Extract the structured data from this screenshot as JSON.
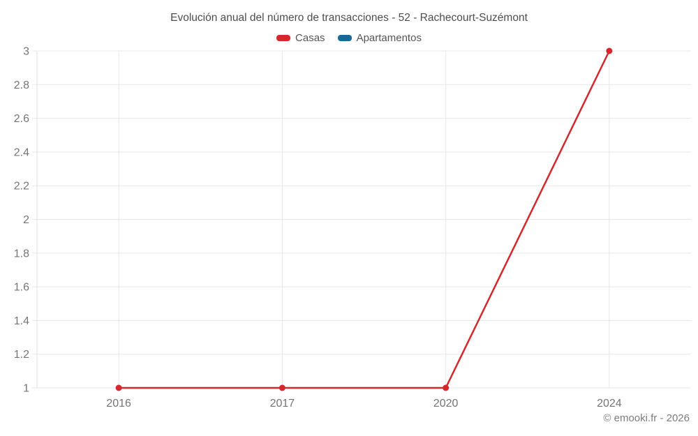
{
  "header": {
    "title": "Evolución anual del número de transacciones - 52 - Rachecourt-Suzémont"
  },
  "legend": [
    {
      "label": "Casas",
      "color": "#d4282d"
    },
    {
      "label": "Apartamentos",
      "color": "#15699b"
    }
  ],
  "footer": {
    "copyright": "© emooki.fr - 2026"
  },
  "colors": {
    "gridline": "#e7e7e7",
    "axis_line": "#e0e0e0",
    "tick_label": "#757575",
    "title_text": "#4d4d4d"
  },
  "chart_data": {
    "type": "line",
    "title": "Evolución anual del número de transacciones - 52 - Rachecourt-Suzémont",
    "categories": [
      "2016",
      "2017",
      "2020",
      "2024"
    ],
    "series": [
      {
        "name": "Casas",
        "color": "#d4282d",
        "values": [
          1,
          1,
          1,
          3
        ]
      },
      {
        "name": "Apartamentos",
        "color": "#15699b",
        "values": []
      }
    ],
    "xlabel": "",
    "ylabel": "",
    "ylim": [
      1,
      3
    ],
    "ytick_step": 0.2,
    "grid": true,
    "legend_position": "top",
    "annotations": [
      "© emooki.fr - 2026"
    ]
  }
}
